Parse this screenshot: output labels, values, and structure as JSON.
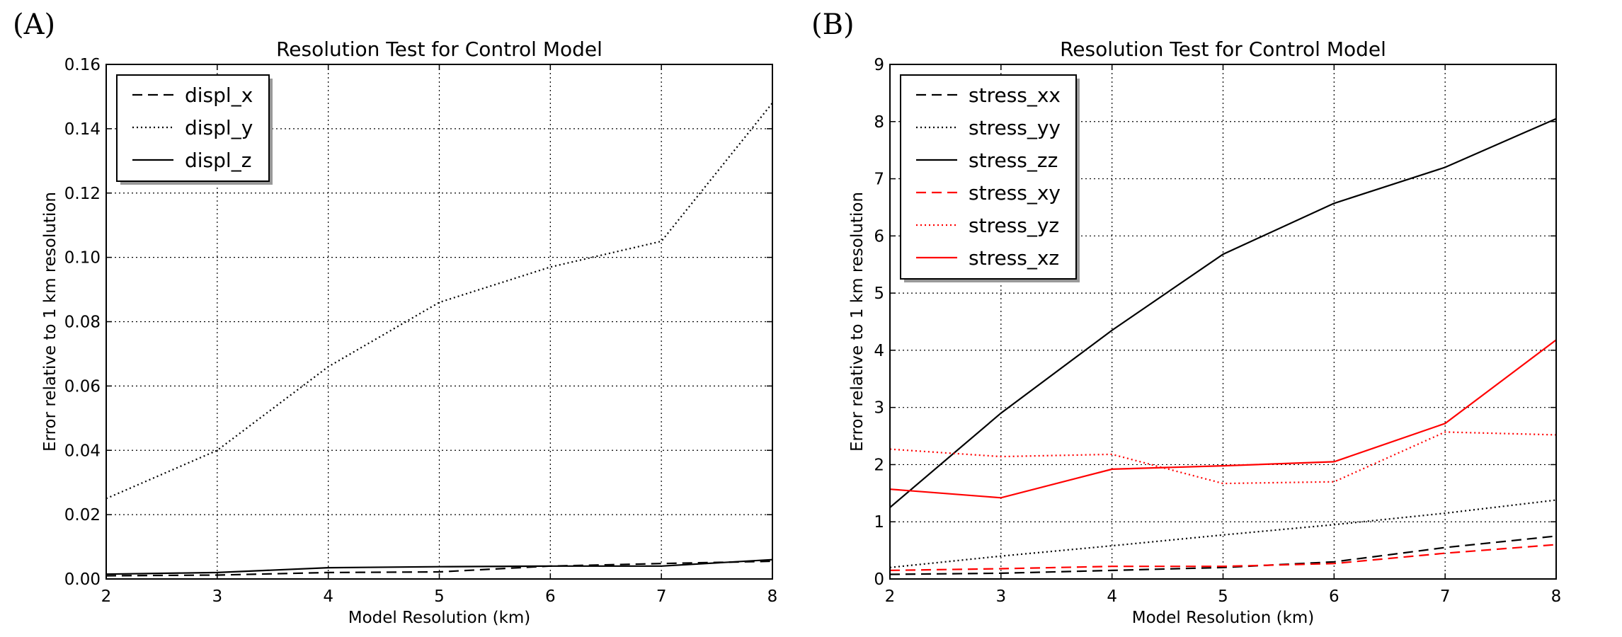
{
  "figure": {
    "panel_a_label": "(A)",
    "panel_b_label": "(B)"
  },
  "chart_data": [
    {
      "type": "line",
      "title": "Resolution Test for Control Model",
      "xlabel": "Model Resolution (km)",
      "ylabel": "Error relative to 1 km resolution",
      "xlim": [
        2,
        8
      ],
      "ylim": [
        0,
        0.16
      ],
      "xticks": [
        "2",
        "3",
        "4",
        "5",
        "6",
        "7",
        "8"
      ],
      "yticks": [
        "0.00",
        "0.02",
        "0.04",
        "0.06",
        "0.08",
        "0.10",
        "0.12",
        "0.14",
        "0.16"
      ],
      "grid": true,
      "legend_position": "top-left",
      "x": [
        2,
        3,
        4,
        5,
        6,
        7,
        8
      ],
      "series": [
        {
          "name": "displ_x",
          "color": "#000000",
          "style": "dashed",
          "values": [
            0.001,
            0.0012,
            0.002,
            0.0022,
            0.004,
            0.0048,
            0.0055
          ]
        },
        {
          "name": "displ_y",
          "color": "#000000",
          "style": "dotted",
          "values": [
            0.025,
            0.04,
            0.066,
            0.086,
            0.097,
            0.105,
            0.148
          ]
        },
        {
          "name": "displ_z",
          "color": "#000000",
          "style": "solid",
          "values": [
            0.0015,
            0.002,
            0.0035,
            0.0038,
            0.004,
            0.004,
            0.006
          ]
        }
      ]
    },
    {
      "type": "line",
      "title": "Resolution Test for Control Model",
      "xlabel": "Model Resolution (km)",
      "ylabel": "Error relative to 1 km resolution",
      "xlim": [
        2,
        8
      ],
      "ylim": [
        0,
        9
      ],
      "xticks": [
        "2",
        "3",
        "4",
        "5",
        "6",
        "7",
        "8"
      ],
      "yticks": [
        "0",
        "1",
        "2",
        "3",
        "4",
        "5",
        "6",
        "7",
        "8",
        "9"
      ],
      "grid": true,
      "legend_position": "top-left",
      "x": [
        2,
        3,
        4,
        5,
        6,
        7,
        8
      ],
      "series": [
        {
          "name": "stress_xx",
          "color": "#000000",
          "style": "dashed",
          "values": [
            0.08,
            0.1,
            0.15,
            0.2,
            0.3,
            0.55,
            0.75
          ]
        },
        {
          "name": "stress_yy",
          "color": "#000000",
          "style": "dotted",
          "values": [
            0.2,
            0.4,
            0.58,
            0.77,
            0.95,
            1.15,
            1.38
          ]
        },
        {
          "name": "stress_zz",
          "color": "#000000",
          "style": "solid",
          "values": [
            1.25,
            2.9,
            4.35,
            5.68,
            6.57,
            7.2,
            8.05
          ]
        },
        {
          "name": "stress_xy",
          "color": "#ff0000",
          "style": "dashed",
          "values": [
            0.15,
            0.18,
            0.22,
            0.22,
            0.27,
            0.45,
            0.6
          ]
        },
        {
          "name": "stress_yz",
          "color": "#ff0000",
          "style": "dotted",
          "values": [
            2.27,
            2.14,
            2.18,
            1.67,
            1.7,
            2.57,
            2.52
          ]
        },
        {
          "name": "stress_xz",
          "color": "#ff0000",
          "style": "solid",
          "values": [
            1.57,
            1.42,
            1.92,
            1.98,
            2.05,
            2.72,
            4.18
          ]
        }
      ]
    }
  ]
}
